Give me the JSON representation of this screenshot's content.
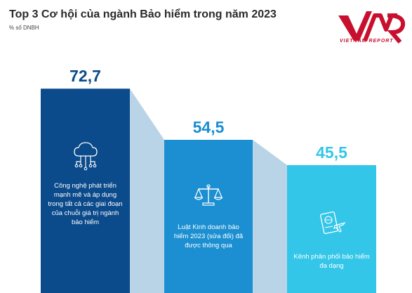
{
  "title": "Top 3 Cơ hội của ngành Bảo hiểm trong năm 2023",
  "subtitle": "% số DNBH",
  "logo": {
    "text": "VIETNAM REPORT",
    "mark": "VNR"
  },
  "colors": {
    "bar1": "#0b4a8b",
    "bar2": "#1b8fd1",
    "bar3": "#34c6e8",
    "connector": "#b8d4e6",
    "value1": "#0b4a8b",
    "value2": "#1b8fd1",
    "value3": "#34c6e8"
  },
  "chart_data": {
    "type": "bar",
    "title": "Top 3 Cơ hội của ngành Bảo hiểm trong năm 2023",
    "subtitle": "% số DNBH",
    "categories": [
      "Công nghệ phát triển mạnh mẽ và áp dụng trong tất cả các giai đoạn của chuỗi giá trị ngành bảo hiểm",
      "Luật Kinh doanh bảo hiểm 2023 (sửa đổi) đã được thông qua",
      "Kênh phân phối bảo hiểm đa dạng"
    ],
    "values": [
      72.7,
      54.5,
      45.5
    ],
    "value_labels": [
      "72,7",
      "54,5",
      "45,5"
    ],
    "icons": [
      "cloud-network-icon",
      "scales-icon",
      "passport-plane-icon"
    ]
  }
}
